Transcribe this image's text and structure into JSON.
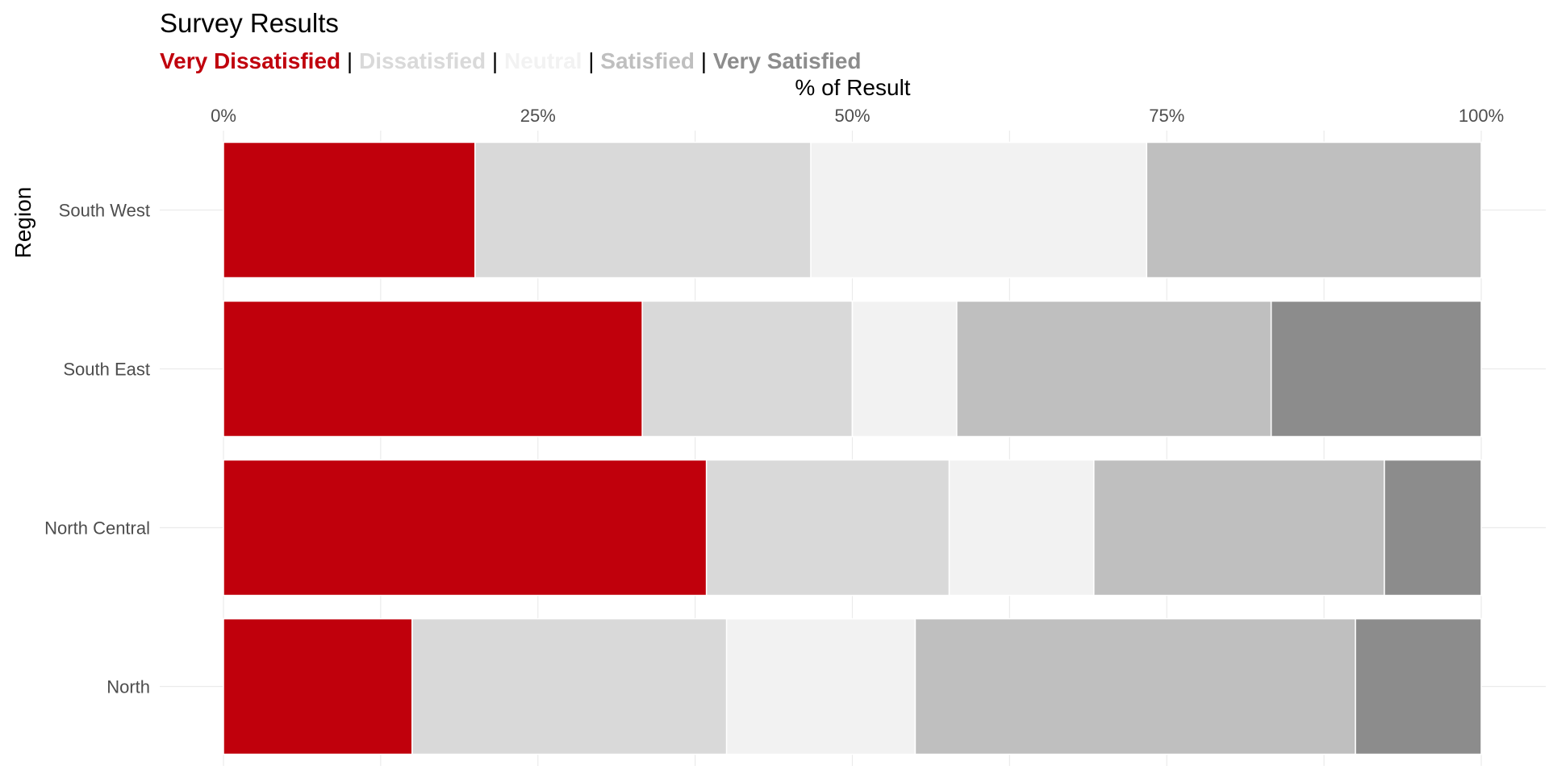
{
  "chart_data": {
    "type": "bar",
    "orientation": "horizontal",
    "stacked": true,
    "title": "Survey Results",
    "xlabel": "% of Result",
    "ylabel": "Region",
    "xlim": [
      0,
      100
    ],
    "x_ticks": [
      0,
      25,
      50,
      75,
      100
    ],
    "x_tick_labels": [
      "0%",
      "25%",
      "50%",
      "75%",
      "100%"
    ],
    "x_axis_position": "top",
    "grid": true,
    "legend_position": "top-left, in subtitle",
    "legend_separator": "|",
    "categories": [
      "South West",
      "South East",
      "North Central",
      "North"
    ],
    "series": [
      {
        "name": "Very Dissatisfied",
        "color": "#c0000c",
        "values": [
          20,
          33.3,
          38.4,
          15
        ]
      },
      {
        "name": "Dissatisfied",
        "color": "#d9d9d9",
        "values": [
          26.7,
          16.7,
          19.3,
          25
        ]
      },
      {
        "name": "Neutral",
        "color": "#f2f2f2",
        "values": [
          26.7,
          8.3,
          11.5,
          15
        ]
      },
      {
        "name": "Satisfied",
        "color": "#bfbfbf",
        "values": [
          26.6,
          25,
          23.1,
          35
        ]
      },
      {
        "name": "Very Satisfied",
        "color": "#8c8c8c",
        "values": [
          0,
          16.7,
          7.7,
          10
        ]
      }
    ]
  }
}
